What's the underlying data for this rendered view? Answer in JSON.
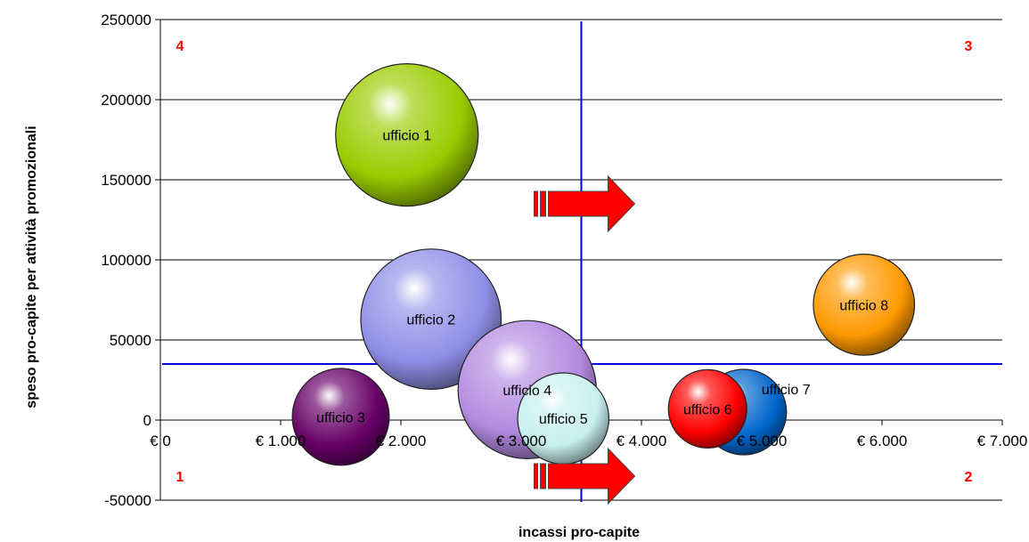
{
  "chart_data": {
    "type": "bubble",
    "xlabel": "incassi pro-capite",
    "ylabel": "speso pro-capite per attività promozionali",
    "xlim": [
      0,
      7000
    ],
    "ylim": [
      -50000,
      250000
    ],
    "x_ticks": [
      0,
      1000,
      2000,
      3000,
      4000,
      5000,
      6000,
      7000
    ],
    "x_tick_labels": [
      "€ 0",
      "€ 1.000",
      "€ 2.000",
      "€ 3.000",
      "€ 4.000",
      "€ 5.000",
      "€ 6.000",
      "€ 7.000"
    ],
    "y_ticks": [
      -50000,
      0,
      50000,
      100000,
      150000,
      200000,
      250000
    ],
    "y_tick_labels": [
      "-50000",
      "0",
      "50000",
      "100000",
      "150000",
      "200000",
      "250000"
    ],
    "grid": "horizontal",
    "divider_lines": {
      "x": 3500,
      "y": 35000,
      "color": "#0000dd"
    },
    "quadrant_labels": [
      {
        "text": "4",
        "position": "top-left"
      },
      {
        "text": "3",
        "position": "top-right"
      },
      {
        "text": "1",
        "position": "bottom-left"
      },
      {
        "text": "2",
        "position": "bottom-right"
      }
    ],
    "quadrant_label_color": "#ff0000",
    "arrows": [
      {
        "x": 3500,
        "y": 135000,
        "direction": "right",
        "color": "#ff0000"
      },
      {
        "x": 3500,
        "y": -35000,
        "direction": "right",
        "color": "#ff0000"
      }
    ],
    "bubbles": [
      {
        "name": "ufficio 1",
        "x": 2050,
        "y": 178000,
        "size": 1.0,
        "color": "#99cc00"
      },
      {
        "name": "ufficio 2",
        "x": 2250,
        "y": 63000,
        "size": 0.985,
        "color": "#8f8fe8"
      },
      {
        "name": "ufficio 3",
        "x": 1500,
        "y": 2000,
        "size": 0.68,
        "color": "#660066"
      },
      {
        "name": "ufficio 4",
        "x": 3050,
        "y": 19000,
        "size": 0.97,
        "color": "#b38ae0"
      },
      {
        "name": "ufficio 5",
        "x": 3350,
        "y": 1000,
        "size": 0.64,
        "color": "#c8f0f0"
      },
      {
        "name": "ufficio 6",
        "x": 4550,
        "y": 7000,
        "size": 0.55,
        "color": "#ff0000"
      },
      {
        "name": "ufficio 7",
        "x": 4850,
        "y": 5000,
        "size": 0.6,
        "color": "#0066cc"
      },
      {
        "name": "ufficio 8",
        "x": 5850,
        "y": 72000,
        "size": 0.71,
        "color": "#ff9900"
      }
    ]
  }
}
